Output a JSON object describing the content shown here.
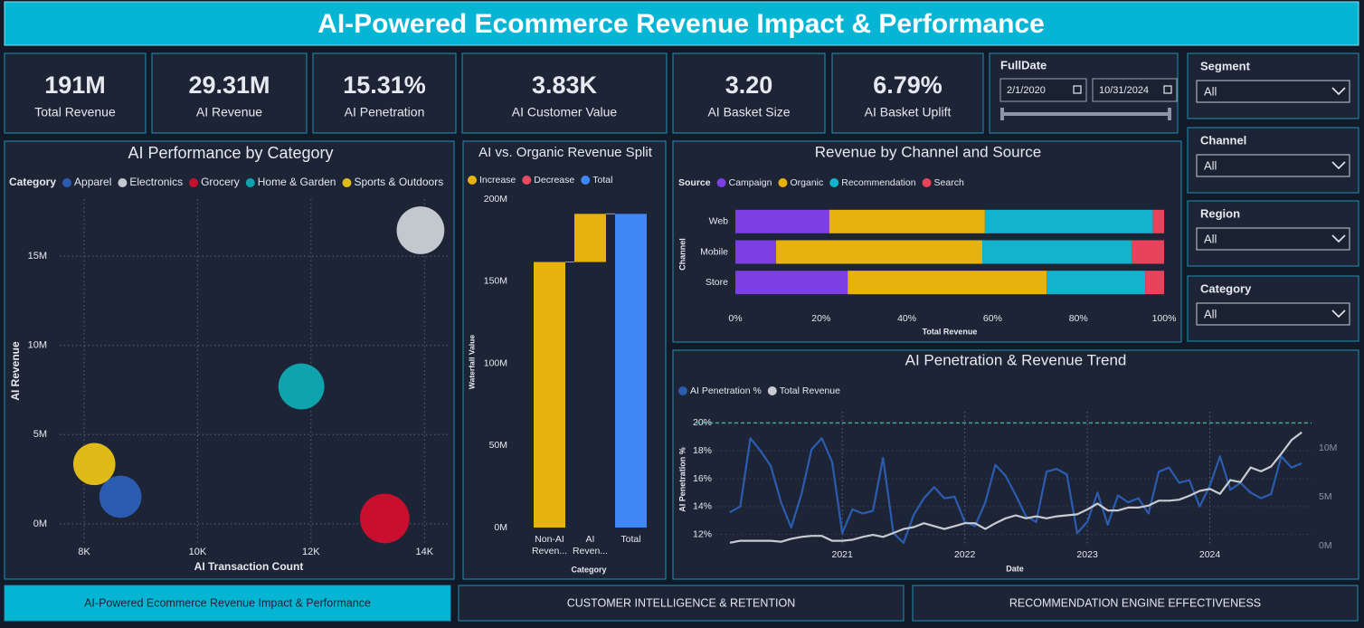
{
  "header": {
    "title": "AI-Powered Ecommerce Revenue Impact & Performance"
  },
  "kpis": [
    {
      "value": "191M",
      "label": "Total Revenue"
    },
    {
      "value": "29.31M",
      "label": "AI Revenue"
    },
    {
      "value": "15.31%",
      "label": "AI Penetration"
    },
    {
      "value": "3.83K",
      "label": "AI Customer Value"
    },
    {
      "value": "3.20",
      "label": "AI Basket Size"
    },
    {
      "value": "6.79%",
      "label": "AI Basket Uplift"
    }
  ],
  "date_filter": {
    "label": "FullDate",
    "start": "2/1/2020",
    "end": "10/31/2024"
  },
  "slicers": [
    {
      "label": "Segment",
      "value": "All"
    },
    {
      "label": "Channel",
      "value": "All"
    },
    {
      "label": "Region",
      "value": "All"
    },
    {
      "label": "Category",
      "value": "All"
    }
  ],
  "chart_data": [
    {
      "type": "bubble",
      "title": "AI Performance by Category",
      "legend_title": "Category",
      "x_label": "AI Transaction Count",
      "y_label": "AI Revenue",
      "xlim": [
        7570,
        14410
      ],
      "xticks": [
        {
          "value": 8000,
          "label": "8K"
        },
        {
          "value": 10000,
          "label": "10K"
        },
        {
          "value": 12000,
          "label": "12K"
        },
        {
          "value": 14000,
          "label": "14K"
        }
      ],
      "ylim": [
        -1070000,
        18200000
      ],
      "yticks": [
        {
          "value": 0,
          "label": "0M"
        },
        {
          "value": 5000000,
          "label": "5M"
        },
        {
          "value": 10000000,
          "label": "10M"
        },
        {
          "value": 15000000,
          "label": "15M"
        }
      ],
      "grid": true,
      "series": [
        {
          "name": "Apparel",
          "color": "#2b5cb0",
          "x": 8640,
          "y": 1520000,
          "size": 53
        },
        {
          "name": "Electronics",
          "color": "#c3c7ce",
          "x": 13930,
          "y": 16450000,
          "size": 68
        },
        {
          "name": "Grocery",
          "color": "#c8102e",
          "x": 13300,
          "y": 300000,
          "size": 73
        },
        {
          "name": "Home & Garden",
          "color": "#0fa3ad",
          "x": 11830,
          "y": 7700000,
          "size": 63
        },
        {
          "name": "Sports & Outdoors",
          "color": "#e0bb17",
          "x": 8180,
          "y": 3350000,
          "size": 53
        }
      ]
    },
    {
      "type": "waterfall",
      "title": "AI vs. Organic Revenue Split",
      "legend": [
        {
          "name": "Increase",
          "color": "#e8b20e"
        },
        {
          "name": "Decrease",
          "color": "#e84a5f"
        },
        {
          "name": "Total",
          "color": "#3f87f5"
        }
      ],
      "categories": [
        "Non-AI Reven...",
        "AI Reven...",
        "Total"
      ],
      "values": [
        161690000,
        29310000,
        191000000
      ],
      "steps": [
        "Increase",
        "Increase",
        "Total"
      ],
      "x_label": "Category",
      "y_label": "Waterfall Value",
      "ylim": [
        0,
        200000000
      ],
      "yticks": [
        {
          "value": 0,
          "label": "0M"
        },
        {
          "value": 50000000,
          "label": "50M"
        },
        {
          "value": 100000000,
          "label": "100M"
        },
        {
          "value": 150000000,
          "label": "150M"
        },
        {
          "value": 200000000,
          "label": "200M"
        }
      ]
    },
    {
      "type": "bar",
      "orientation": "horizontal",
      "stacked": true,
      "title": "Revenue by Channel and Source",
      "legend_title": "Source",
      "categories": [
        "Web",
        "Mobile",
        "Store"
      ],
      "series": [
        {
          "name": "Campaign",
          "color": "#7b3fe4",
          "values": [
            21.9,
            9.5,
            26.2
          ]
        },
        {
          "name": "Organic",
          "color": "#e8b20e",
          "values": [
            36.3,
            48.1,
            46.4
          ]
        },
        {
          "name": "Recommendation",
          "color": "#12b3cc",
          "values": [
            39.2,
            34.8,
            23.0
          ]
        },
        {
          "name": "Search",
          "color": "#e8435a",
          "values": [
            2.6,
            7.6,
            4.4
          ]
        }
      ],
      "x_label": "Total Revenue",
      "y_label": "Channel",
      "xlim": [
        0,
        100
      ],
      "xticks": [
        {
          "value": 0,
          "label": "0%"
        },
        {
          "value": 20,
          "label": "20%"
        },
        {
          "value": 40,
          "label": "40%"
        },
        {
          "value": 60,
          "label": "60%"
        },
        {
          "value": 80,
          "label": "80%"
        },
        {
          "value": 100,
          "label": "100%"
        }
      ]
    },
    {
      "type": "line",
      "title": "AI Penetration & Revenue Trend",
      "x_label": "Date",
      "y_label": "AI Penetration %",
      "x": [
        2020.083,
        2020.167,
        2020.25,
        2020.333,
        2020.417,
        2020.5,
        2020.583,
        2020.667,
        2020.75,
        2020.833,
        2020.917,
        2021,
        2021.083,
        2021.167,
        2021.25,
        2021.333,
        2021.417,
        2021.5,
        2021.583,
        2021.667,
        2021.75,
        2021.833,
        2021.917,
        2022,
        2022.083,
        2022.167,
        2022.25,
        2022.333,
        2022.417,
        2022.5,
        2022.583,
        2022.667,
        2022.75,
        2022.833,
        2022.917,
        2023,
        2023.083,
        2023.167,
        2023.25,
        2023.333,
        2023.417,
        2023.5,
        2023.583,
        2023.667,
        2023.75,
        2023.833,
        2023.917,
        2024,
        2024.083,
        2024.167,
        2024.25,
        2024.333,
        2024.417,
        2024.5,
        2024.583,
        2024.667,
        2024.75
      ],
      "series": [
        {
          "name": "AI Penetration %",
          "color": "#2b5cb0",
          "values": [
            13.6,
            14.0,
            18.9,
            18.0,
            16.9,
            14.3,
            12.5,
            14.9,
            18.1,
            18.9,
            17.2,
            12.1,
            13.8,
            13.5,
            13.7,
            17.5,
            12.1,
            11.4,
            13.4,
            14.6,
            15.4,
            14.6,
            14.7,
            12.9,
            12.6,
            14.3,
            17.0,
            16.2,
            14.8,
            13.3,
            12.9,
            16.5,
            16.7,
            16.3,
            12.1,
            12.9,
            15.0,
            12.7,
            14.8,
            14.3,
            14.6,
            13.5,
            16.5,
            16.8,
            15.7,
            15.9,
            14.0,
            15.5,
            17.6,
            15.2,
            15.7,
            15.0,
            14.6,
            14.9,
            17.6,
            16.8,
            17.1
          ]
        },
        {
          "name": "Total Revenue",
          "color": "#c8ccd2",
          "axis": "y2",
          "values": [
            300000,
            500000,
            500000,
            500000,
            500000,
            400000,
            700000,
            900000,
            1000000,
            1000000,
            500000,
            500000,
            600000,
            900000,
            1100000,
            900000,
            1300000,
            1700000,
            1900000,
            2300000,
            2000000,
            1700000,
            2000000,
            2300000,
            2300000,
            1700000,
            2300000,
            2800000,
            3100000,
            2800000,
            3000000,
            2800000,
            3000000,
            3100000,
            3200000,
            3700000,
            4300000,
            3600000,
            3600000,
            3900000,
            3900000,
            4100000,
            4600000,
            4600000,
            4700000,
            5100000,
            5600000,
            5800000,
            5300000,
            6700000,
            6500000,
            8000000,
            7600000,
            8100000,
            9400000,
            10800000,
            11600000
          ]
        }
      ],
      "xlim": [
        2019.81,
        2024.83
      ],
      "xticks": [
        2021,
        2022,
        2023,
        2024
      ],
      "ylim": [
        11.2,
        20.8
      ],
      "yticks": [
        {
          "value": 12,
          "label": "12%"
        },
        {
          "value": 14,
          "label": "14%"
        },
        {
          "value": 16,
          "label": "16%"
        },
        {
          "value": 18,
          "label": "18%"
        },
        {
          "value": 20,
          "label": "20%"
        }
      ],
      "y2lim": [
        0,
        13700000
      ],
      "y2ticks": [
        {
          "value": 0,
          "label": "0M"
        },
        {
          "value": 5000000,
          "label": "5M"
        },
        {
          "value": 10000000,
          "label": "10M"
        }
      ],
      "reference_line": {
        "value": 20,
        "color": "#3fa88f"
      },
      "grid": true
    }
  ],
  "tabs": [
    {
      "label": "AI-Powered Ecommerce Revenue Impact & Performance",
      "active": true
    },
    {
      "label": "CUSTOMER INTELLIGENCE & RETENTION",
      "active": false
    },
    {
      "label": "RECOMMENDATION ENGINE EFFECTIVENESS",
      "active": false
    }
  ]
}
